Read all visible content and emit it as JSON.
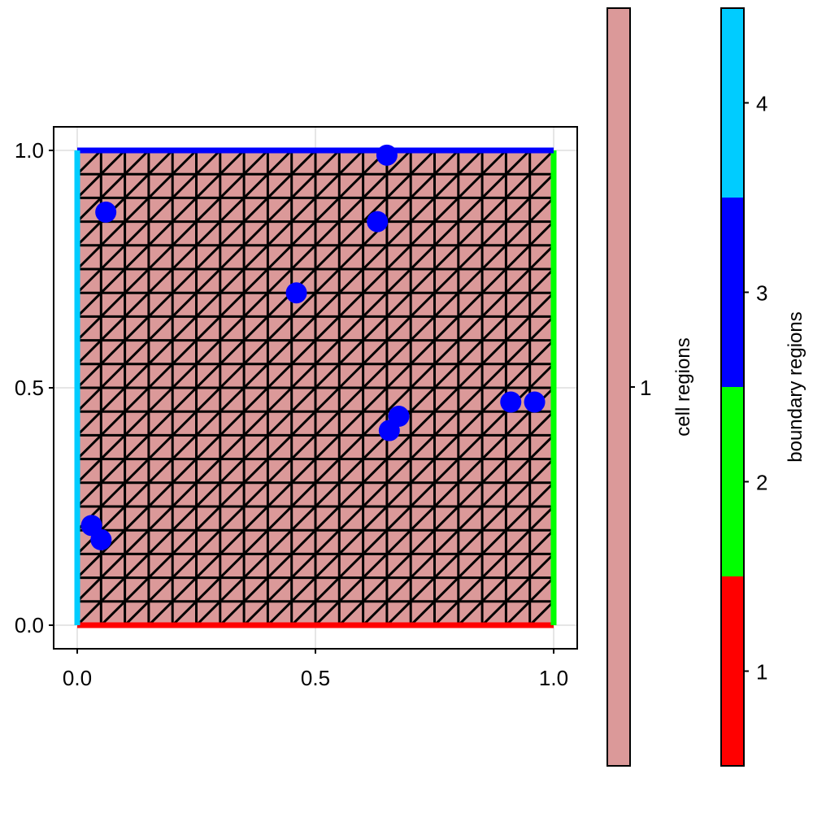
{
  "chart_data": {
    "type": "scatter",
    "title": "",
    "xlabel": "",
    "ylabel": "",
    "xlim": [
      0,
      1
    ],
    "ylim": [
      0,
      1
    ],
    "x_ticks": [
      "0.0",
      "0.5",
      "1.0"
    ],
    "y_ticks": [
      "0.0",
      "0.5",
      "1.0"
    ],
    "grid": true,
    "mesh": {
      "divisions": 20,
      "cell_color": "#db9999",
      "line_color": "#000000"
    },
    "boundary_edges": [
      {
        "region": 1,
        "side": "bottom",
        "color": "#ff0000"
      },
      {
        "region": 2,
        "side": "right",
        "color": "#00ff00"
      },
      {
        "region": 3,
        "side": "top",
        "color": "#0000ff"
      },
      {
        "region": 4,
        "side": "left",
        "color": "#00ccff"
      }
    ],
    "points": {
      "color": "#0000ff",
      "x": [
        0.65,
        0.06,
        0.63,
        0.46,
        0.91,
        0.96,
        0.675,
        0.655,
        0.03,
        0.05
      ],
      "y": [
        0.99,
        0.87,
        0.85,
        0.7,
        0.47,
        0.47,
        0.44,
        0.41,
        0.21,
        0.18
      ]
    },
    "colorbars": [
      {
        "label": "cell regions",
        "ticks": [
          "1"
        ],
        "colors": [
          "#db9999"
        ]
      },
      {
        "label": "boundary regions",
        "ticks": [
          "1",
          "2",
          "3",
          "4"
        ],
        "colors": [
          "#ff0000",
          "#00ff00",
          "#0000ff",
          "#00ccff"
        ]
      }
    ]
  }
}
